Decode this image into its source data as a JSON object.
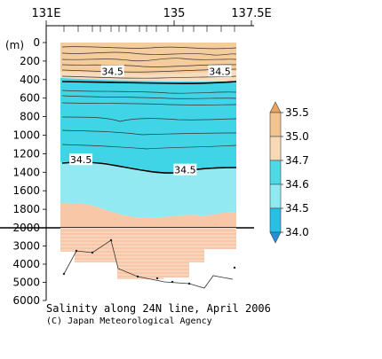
{
  "chart_data": {
    "type": "contour-section",
    "title": "Salinity along 24N line, April 2006",
    "credit": "(C) Japan Meteorological Agency",
    "x_axis": {
      "range": [
        131,
        137.5
      ],
      "ticks": [
        {
          "value": 131,
          "label": "131E"
        },
        {
          "value": 135,
          "label": "135"
        },
        {
          "value": 137.5,
          "label": "137.5E"
        }
      ]
    },
    "y_axis": {
      "unit_label": "(m)",
      "range": [
        0,
        6000
      ],
      "ticks": [
        0,
        200,
        400,
        600,
        800,
        1000,
        1200,
        1400,
        1600,
        1800,
        2000,
        3000,
        4000,
        5000,
        6000
      ],
      "upper_panel_max": 2000
    },
    "contour_labels": [
      {
        "text": "34.5",
        "lon": 133.1,
        "depth": 310
      },
      {
        "text": "34.5",
        "lon": 136.5,
        "depth": 310
      },
      {
        "text": "34.5",
        "lon": 132.1,
        "depth": 1265
      },
      {
        "text": "34.5",
        "lon": 135.4,
        "depth": 1375
      }
    ],
    "legend": {
      "levels": [
        "35.5",
        "35.0",
        "34.7",
        "34.6",
        "34.5",
        "34.0"
      ],
      "colors": [
        "#e8a55e",
        "#f2c48f",
        "#f7d9b8",
        "#4fd9e4",
        "#8ee9f1",
        "#27c0e3"
      ]
    },
    "colors": {
      "high_salinity": "#f3c998",
      "mid_salinity": "#f8dcc0",
      "cyan_main": "#3fd4e6",
      "cyan_light": "#92e9f2",
      "pink_deep": "#f7c7a7"
    }
  }
}
